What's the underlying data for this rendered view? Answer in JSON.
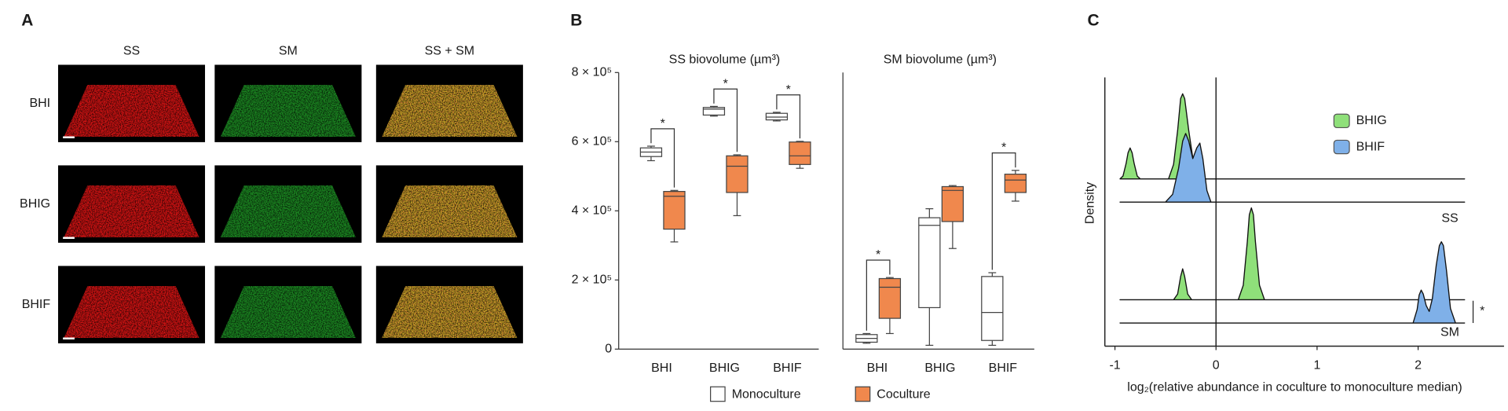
{
  "panel_labels": [
    "A",
    "B",
    "C"
  ],
  "panel_a": {
    "columns": [
      "SS",
      "SM",
      "SS + SM"
    ],
    "rows": [
      "BHI",
      "BHIG",
      "BHIF"
    ]
  },
  "chart_data": [
    {
      "type": "box",
      "title": "SS biovolume (µm³)",
      "categories": [
        "BHI",
        "BHIG",
        "BHIF"
      ],
      "ylim": [
        0,
        800000
      ],
      "yticks": [
        0,
        {
          "value": 200000,
          "label": "2 × 10⁵"
        },
        {
          "value": 400000,
          "label": "4 × 10⁵"
        },
        {
          "value": 600000,
          "label": "6 × 10⁵"
        },
        {
          "value": 800000,
          "label": "8 × 10⁵"
        }
      ],
      "annotations": [
        "*",
        "*",
        "*"
      ],
      "series": [
        {
          "name": "Monoculture",
          "color": "#ffffff",
          "min": [
            545000,
            674000,
            660000
          ],
          "q1": [
            557000,
            677000,
            663000
          ],
          "median": [
            570000,
            694000,
            671000
          ],
          "q3": [
            582000,
            699000,
            682000
          ],
          "max": [
            587000,
            702000,
            685000
          ]
        },
        {
          "name": "Coculture",
          "color": "#f0884d",
          "min": [
            310000,
            386000,
            523000
          ],
          "q1": [
            347000,
            453000,
            534000
          ],
          "median": [
            442000,
            529000,
            559000
          ],
          "q3": [
            456000,
            559000,
            599000
          ],
          "max": [
            459000,
            562000,
            601000
          ]
        }
      ]
    },
    {
      "type": "box",
      "title": "SM biovolume (µm³)",
      "categories": [
        "BHI",
        "BHIG",
        "BHIF"
      ],
      "ylim": [
        0,
        800000
      ],
      "annotations": [
        "*",
        null,
        "*"
      ],
      "series": [
        {
          "color": "#ffffff",
          "min": [
            17000,
            11000,
            11000
          ],
          "q1": [
            20000,
            120000,
            25000
          ],
          "median": [
            31000,
            358000,
            106000
          ],
          "q3": [
            42000,
            380000,
            210000
          ],
          "max": [
            45000,
            406000,
            221000
          ]
        },
        {
          "color": "#f0884d",
          "min": [
            45000,
            291000,
            428000
          ],
          "q1": [
            89000,
            369000,
            453000
          ],
          "median": [
            179000,
            459000,
            489000
          ],
          "q3": [
            204000,
            470000,
            506000
          ],
          "max": [
            207000,
            473000,
            517000
          ]
        }
      ]
    },
    {
      "type": "ridge",
      "xlabel": "log₂(relative abundance in coculture to monoculture median)",
      "ylabel": "Density",
      "xlim": [
        -1.1,
        2.85
      ],
      "xticks": [
        -1,
        0,
        1,
        2
      ],
      "vline": 0,
      "groups": [
        "SS",
        "SM"
      ],
      "significance": "*",
      "series": [
        {
          "name": "BHIG",
          "color": "#8fe07a",
          "curves": [
            {
              "x": [
                -0.95,
                -0.92,
                -0.89,
                -0.87,
                -0.85,
                -0.83,
                -0.81,
                -0.78,
                -0.75,
                -0.47,
                -0.42,
                -0.38,
                -0.35,
                -0.33,
                -0.31,
                -0.27,
                -0.22,
                -0.17,
                2.46
              ],
              "values": [
                0,
                0.3,
                1.6,
                2.7,
                3.2,
                2.7,
                1.6,
                0.3,
                0,
                0,
                1.5,
                5,
                8.3,
                8.8,
                8.3,
                5,
                1.5,
                0,
                0
              ]
            },
            {
              "x": [
                -0.95,
                -0.42,
                -0.38,
                -0.35,
                -0.33,
                -0.31,
                -0.28,
                -0.24,
                0.22,
                0.27,
                0.31,
                0.33,
                0.35,
                0.37,
                0.39,
                0.43,
                0.48,
                2.46
              ],
              "values": [
                0,
                0,
                0.6,
                2.4,
                3.2,
                2.4,
                0.6,
                0,
                0,
                1.5,
                6,
                8.8,
                9.5,
                8.8,
                6,
                1.5,
                0,
                0
              ]
            }
          ]
        },
        {
          "name": "BHIF",
          "color": "#7fb0e8",
          "curves": [
            {
              "x": [
                -0.95,
                -0.5,
                -0.43,
                -0.37,
                -0.33,
                -0.3,
                -0.27,
                -0.23,
                -0.19,
                -0.16,
                -0.13,
                -0.09,
                -0.05,
                2.46
              ],
              "values": [
                0,
                0,
                0.8,
                3.5,
                6.3,
                7.1,
                6.3,
                4.5,
                5.6,
                6.1,
                4.5,
                1.2,
                0,
                0
              ]
            },
            {
              "x": [
                -0.95,
                1.95,
                1.99,
                2.01,
                2.03,
                2.05,
                2.08,
                2.11,
                2.14,
                2.18,
                2.21,
                2.23,
                2.25,
                2.28,
                2.32,
                2.37,
                2.46
              ],
              "values": [
                0,
                0,
                1.4,
                2.9,
                3.4,
                3,
                1.8,
                1.2,
                2.5,
                6,
                8,
                8.4,
                8,
                5.5,
                1.5,
                0,
                0
              ]
            }
          ]
        }
      ]
    }
  ]
}
